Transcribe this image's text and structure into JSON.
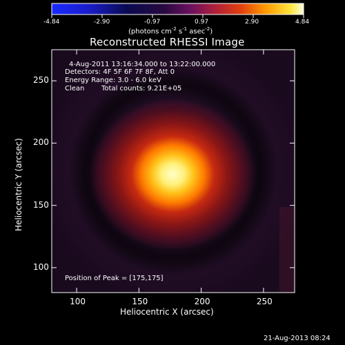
{
  "colorbar": {
    "ticks": [
      "-4.84",
      "-2.90",
      "-0.97",
      "0.97",
      "2.90",
      "4.84"
    ],
    "units_html": "(photons cm⁻² s⁻¹ asec⁻²)"
  },
  "title": "Reconstructed RHESSI Image",
  "info": {
    "time": "4-Aug-2011 13:16:34.000 to 13:22:00.000",
    "detectors": "Detectors: 4F 5F 6F 7F 8F, Att 0",
    "energy": "Energy Range: 3.0 - 6.0 keV",
    "clean_label": "Clean",
    "total_counts": "Total counts: 9.21E+05",
    "peak": "Position of Peak = [175,175]"
  },
  "axes": {
    "xlabel": "Heliocentric X (arcsec)",
    "ylabel": "Heliocentric Y (arcsec)",
    "xticks": [
      "100",
      "150",
      "200",
      "250"
    ],
    "yticks": [
      "250",
      "200",
      "150",
      "100"
    ],
    "x_values": [
      100,
      150,
      200,
      250
    ],
    "y_values": [
      250,
      200,
      150,
      100
    ],
    "x_range": [
      80,
      275
    ],
    "y_range": [
      80,
      275
    ]
  },
  "source": {
    "peak_x": 175,
    "peak_y": 175
  },
  "footer_date": "21-Aug-2013 08:24"
}
